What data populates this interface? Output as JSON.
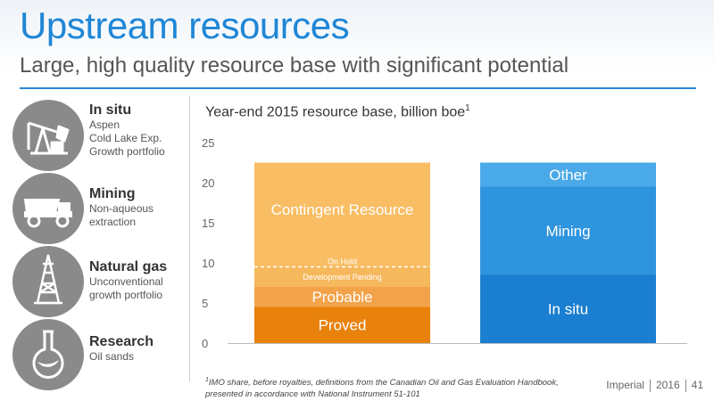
{
  "header": {
    "title": "Upstream resources",
    "subtitle": "Large, high quality resource base with significant potential"
  },
  "sidebar": {
    "items": [
      {
        "heading": "In situ",
        "lines": [
          "Aspen",
          "Cold Lake Exp.",
          "Growth portfolio"
        ],
        "icon": "oil-pump-icon"
      },
      {
        "heading": "Mining",
        "lines": [
          "Non-aqueous",
          "extraction"
        ],
        "icon": "mining-truck-icon"
      },
      {
        "heading": "Natural gas",
        "lines": [
          "Unconventional",
          "growth portfolio"
        ],
        "icon": "drilling-rig-icon"
      },
      {
        "heading": "Research",
        "lines": [
          "Oil sands"
        ],
        "icon": "flask-icon"
      }
    ]
  },
  "chart_data": {
    "type": "bar",
    "stacked": true,
    "title": "Year-end 2015 resource base, billion boe",
    "title_footnote_marker": "1",
    "ylim": [
      0,
      25
    ],
    "yticks": [
      0,
      5,
      10,
      15,
      20,
      25
    ],
    "grid": false,
    "bars": [
      {
        "segments": [
          {
            "label": "Proved",
            "value": 4.5,
            "color": "#e8820c"
          },
          {
            "label": "Probable",
            "value": 2.5,
            "color": "#f2a34a"
          },
          {
            "label": "Development Pending",
            "value": 2.5,
            "color": "#f6b85c"
          },
          {
            "label": "On Hold",
            "value": 0,
            "color": "#f6b85c"
          },
          {
            "label": "Contingent Resource",
            "value": 13,
            "color": "#f9bd64"
          }
        ],
        "divider_at": 9.5
      },
      {
        "segments": [
          {
            "label": "In situ",
            "value": 8.5,
            "color": "#1a7fd0"
          },
          {
            "label": "Mining",
            "value": 11,
            "color": "#2f94de"
          },
          {
            "label": "Other",
            "value": 3,
            "color": "#4aa9e8"
          }
        ]
      }
    ]
  },
  "footnote": {
    "marker": "1",
    "text": "IMO share, before royalties, definitions from the Canadian Oil and Gas Evaluation Handbook, presented in accordance with National Instrument 51-101"
  },
  "footer": {
    "company": "Imperial",
    "year": "2016",
    "page": "41"
  }
}
